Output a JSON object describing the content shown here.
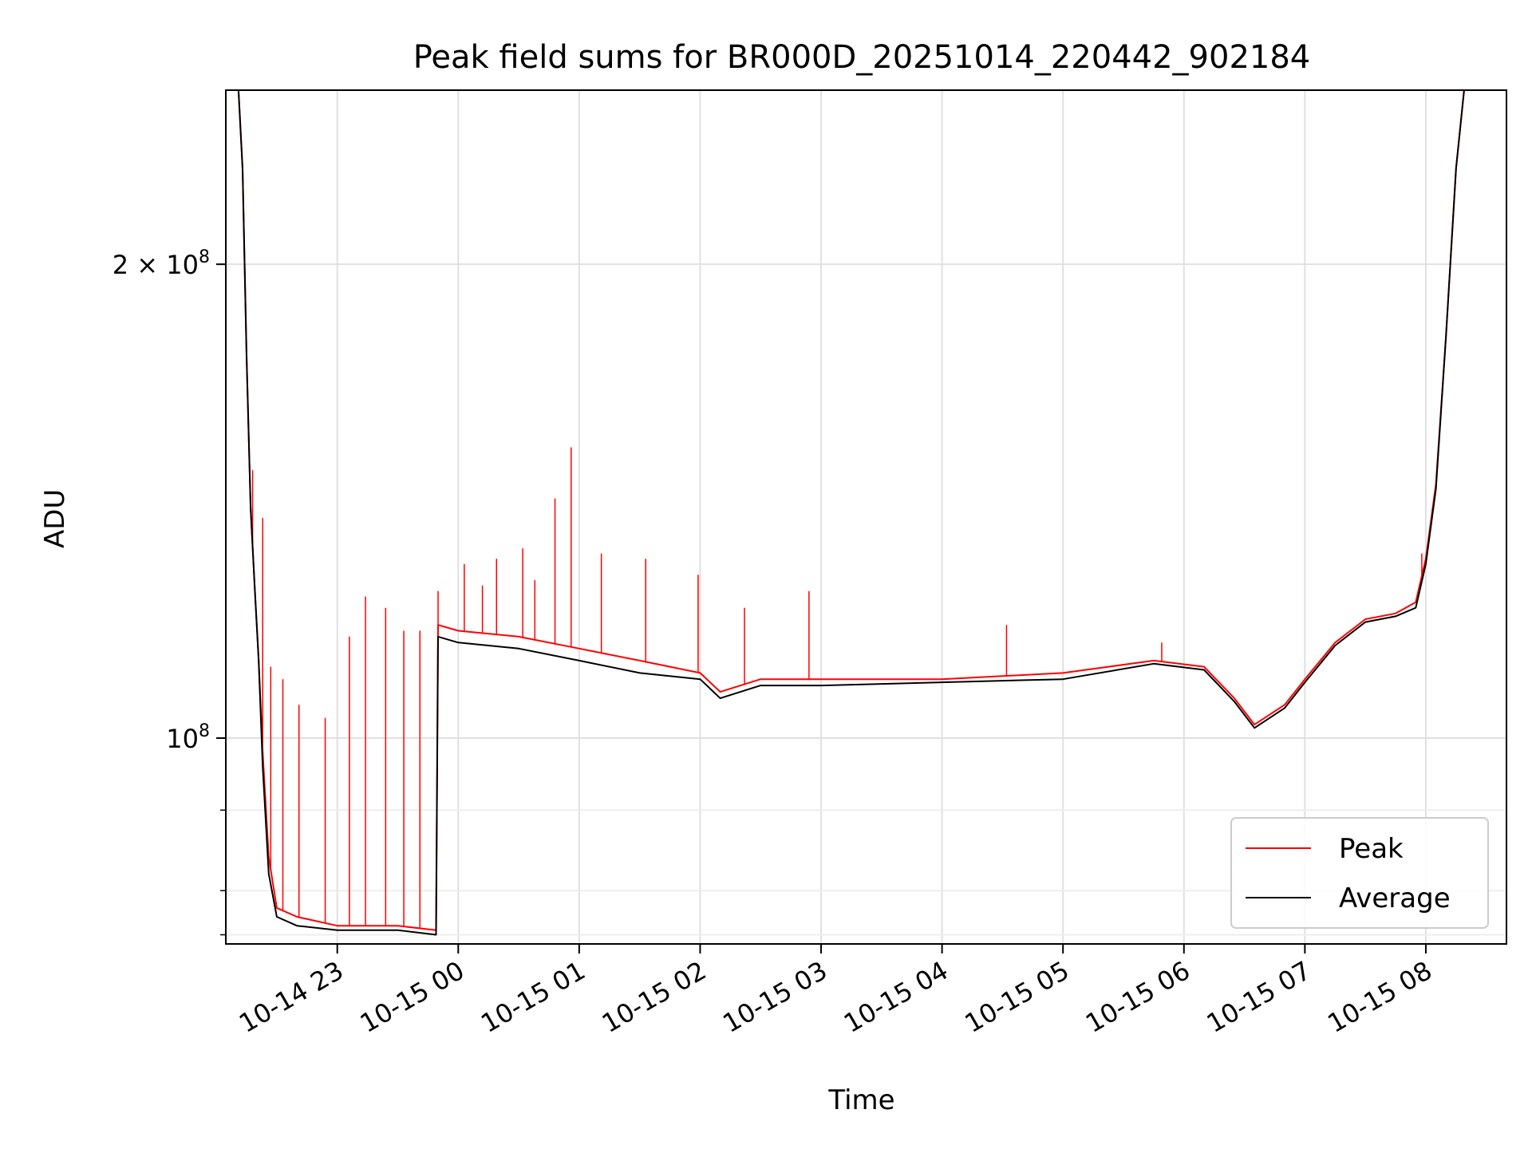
{
  "chart_data": {
    "type": "line",
    "title": "Peak field sums for BR000D_20251014_220442_902184",
    "xlabel": "Time",
    "ylabel": "ADU",
    "yscale": "log",
    "ylim": [
      74000000,
      258000000
    ],
    "xlim": [
      "2025-10-14T22:04:42",
      "2025-10-15T08:40:00"
    ],
    "x_ticks": [
      {
        "t": "2025-10-14T23:00",
        "label": "10-14 23"
      },
      {
        "t": "2025-10-15T00:00",
        "label": "10-15 00"
      },
      {
        "t": "2025-10-15T01:00",
        "label": "10-15 01"
      },
      {
        "t": "2025-10-15T02:00",
        "label": "10-15 02"
      },
      {
        "t": "2025-10-15T03:00",
        "label": "10-15 03"
      },
      {
        "t": "2025-10-15T04:00",
        "label": "10-15 04"
      },
      {
        "t": "2025-10-15T05:00",
        "label": "10-15 05"
      },
      {
        "t": "2025-10-15T06:00",
        "label": "10-15 06"
      },
      {
        "t": "2025-10-15T07:00",
        "label": "10-15 07"
      },
      {
        "t": "2025-10-15T08:00",
        "label": "10-15 08"
      }
    ],
    "y_major_ticks": [
      {
        "v": 100000000,
        "base": "10",
        "exp": "8",
        "coef": ""
      },
      {
        "v": 200000000,
        "base": "10",
        "exp": "8",
        "coef": "2 × "
      }
    ],
    "y_minor_ticks": [
      90000000,
      80000000,
      75000000
    ],
    "grid": true,
    "legend_position": "lower-right",
    "series": [
      {
        "name": "Peak",
        "color": "#ff0000",
        "points": [
          [
            "2025-10-14T22:04:42",
            258000000
          ],
          [
            "2025-10-14T22:11",
            258000000
          ],
          [
            "2025-10-14T22:13",
            230000000
          ],
          [
            "2025-10-14T22:15",
            175000000
          ],
          [
            "2025-10-14T22:17",
            140000000
          ],
          [
            "2025-10-14T22:19",
            125000000
          ],
          [
            "2025-10-14T22:21",
            112000000
          ],
          [
            "2025-10-14T22:23",
            98000000
          ],
          [
            "2025-10-14T22:26",
            84000000
          ],
          [
            "2025-10-14T22:30",
            78000000
          ],
          [
            "2025-10-14T22:40",
            77000000
          ],
          [
            "2025-10-14T23:00",
            76000000
          ],
          [
            "2025-10-14T23:30",
            76000000
          ],
          [
            "2025-10-14T23:49",
            75500000
          ],
          [
            "2025-10-14T23:50",
            118000000
          ],
          [
            "2025-10-15T00:00",
            117000000
          ],
          [
            "2025-10-15T00:30",
            116000000
          ],
          [
            "2025-10-15T01:00",
            114000000
          ],
          [
            "2025-10-15T01:30",
            112000000
          ],
          [
            "2025-10-15T02:00",
            110000000
          ],
          [
            "2025-10-15T02:10",
            107000000
          ],
          [
            "2025-10-15T02:30",
            109000000
          ],
          [
            "2025-10-15T03:00",
            109000000
          ],
          [
            "2025-10-15T04:00",
            109000000
          ],
          [
            "2025-10-15T05:00",
            110000000
          ],
          [
            "2025-10-15T05:45",
            112000000
          ],
          [
            "2025-10-15T06:10",
            111000000
          ],
          [
            "2025-10-15T06:25",
            106000000
          ],
          [
            "2025-10-15T06:35",
            102000000
          ],
          [
            "2025-10-15T06:50",
            105000000
          ],
          [
            "2025-10-15T07:00",
            109000000
          ],
          [
            "2025-10-15T07:15",
            115000000
          ],
          [
            "2025-10-15T07:30",
            119000000
          ],
          [
            "2025-10-15T07:45",
            120000000
          ],
          [
            "2025-10-15T07:55",
            122000000
          ],
          [
            "2025-10-15T08:00",
            130000000
          ],
          [
            "2025-10-15T08:05",
            145000000
          ],
          [
            "2025-10-15T08:10",
            180000000
          ],
          [
            "2025-10-15T08:15",
            230000000
          ],
          [
            "2025-10-15T08:19",
            258000000
          ]
        ],
        "spikes": [
          [
            "2025-10-14T22:18",
            148000000
          ],
          [
            "2025-10-14T22:23",
            138000000
          ],
          [
            "2025-10-14T22:27",
            111000000
          ],
          [
            "2025-10-14T22:33",
            109000000
          ],
          [
            "2025-10-14T22:41",
            105000000
          ],
          [
            "2025-10-14T22:54",
            103000000
          ],
          [
            "2025-10-14T23:06",
            116000000
          ],
          [
            "2025-10-14T23:14",
            123000000
          ],
          [
            "2025-10-14T23:24",
            121000000
          ],
          [
            "2025-10-14T23:33",
            117000000
          ],
          [
            "2025-10-14T23:41",
            117000000
          ],
          [
            "2025-10-14T23:50",
            124000000
          ],
          [
            "2025-10-15T00:03",
            129000000
          ],
          [
            "2025-10-15T00:12",
            125000000
          ],
          [
            "2025-10-15T00:19",
            130000000
          ],
          [
            "2025-10-15T00:32",
            132000000
          ],
          [
            "2025-10-15T00:38",
            126000000
          ],
          [
            "2025-10-15T00:48",
            142000000
          ],
          [
            "2025-10-15T00:56",
            153000000
          ],
          [
            "2025-10-15T01:11",
            131000000
          ],
          [
            "2025-10-15T01:33",
            130000000
          ],
          [
            "2025-10-15T01:59",
            127000000
          ],
          [
            "2025-10-15T02:22",
            121000000
          ],
          [
            "2025-10-15T02:54",
            124000000
          ],
          [
            "2025-10-15T04:32",
            118000000
          ],
          [
            "2025-10-15T05:49",
            115000000
          ],
          [
            "2025-10-15T07:58",
            131000000
          ]
        ]
      },
      {
        "name": "Average",
        "color": "#000000",
        "points": [
          [
            "2025-10-14T22:04:42",
            258000000
          ],
          [
            "2025-10-14T22:11",
            258000000
          ],
          [
            "2025-10-14T22:13",
            230000000
          ],
          [
            "2025-10-14T22:15",
            175000000
          ],
          [
            "2025-10-14T22:17",
            140000000
          ],
          [
            "2025-10-14T22:19",
            125000000
          ],
          [
            "2025-10-14T22:21",
            112000000
          ],
          [
            "2025-10-14T22:23",
            96000000
          ],
          [
            "2025-10-14T22:26",
            82000000
          ],
          [
            "2025-10-14T22:30",
            77000000
          ],
          [
            "2025-10-14T22:40",
            76000000
          ],
          [
            "2025-10-14T23:00",
            75500000
          ],
          [
            "2025-10-14T23:30",
            75500000
          ],
          [
            "2025-10-14T23:49",
            75000000
          ],
          [
            "2025-10-14T23:50",
            116000000
          ],
          [
            "2025-10-15T00:00",
            115000000
          ],
          [
            "2025-10-15T00:30",
            114000000
          ],
          [
            "2025-10-15T01:00",
            112000000
          ],
          [
            "2025-10-15T01:30",
            110000000
          ],
          [
            "2025-10-15T02:00",
            109000000
          ],
          [
            "2025-10-15T02:10",
            106000000
          ],
          [
            "2025-10-15T02:30",
            108000000
          ],
          [
            "2025-10-15T03:00",
            108000000
          ],
          [
            "2025-10-15T04:00",
            108500000
          ],
          [
            "2025-10-15T05:00",
            109000000
          ],
          [
            "2025-10-15T05:45",
            111500000
          ],
          [
            "2025-10-15T06:10",
            110500000
          ],
          [
            "2025-10-15T06:25",
            105500000
          ],
          [
            "2025-10-15T06:35",
            101500000
          ],
          [
            "2025-10-15T06:50",
            104500000
          ],
          [
            "2025-10-15T07:00",
            108500000
          ],
          [
            "2025-10-15T07:15",
            114500000
          ],
          [
            "2025-10-15T07:30",
            118500000
          ],
          [
            "2025-10-15T07:45",
            119500000
          ],
          [
            "2025-10-15T07:55",
            121000000
          ],
          [
            "2025-10-15T08:00",
            129000000
          ],
          [
            "2025-10-15T08:05",
            144000000
          ],
          [
            "2025-10-15T08:10",
            180000000
          ],
          [
            "2025-10-15T08:15",
            230000000
          ],
          [
            "2025-10-15T08:19",
            258000000
          ]
        ]
      }
    ]
  }
}
